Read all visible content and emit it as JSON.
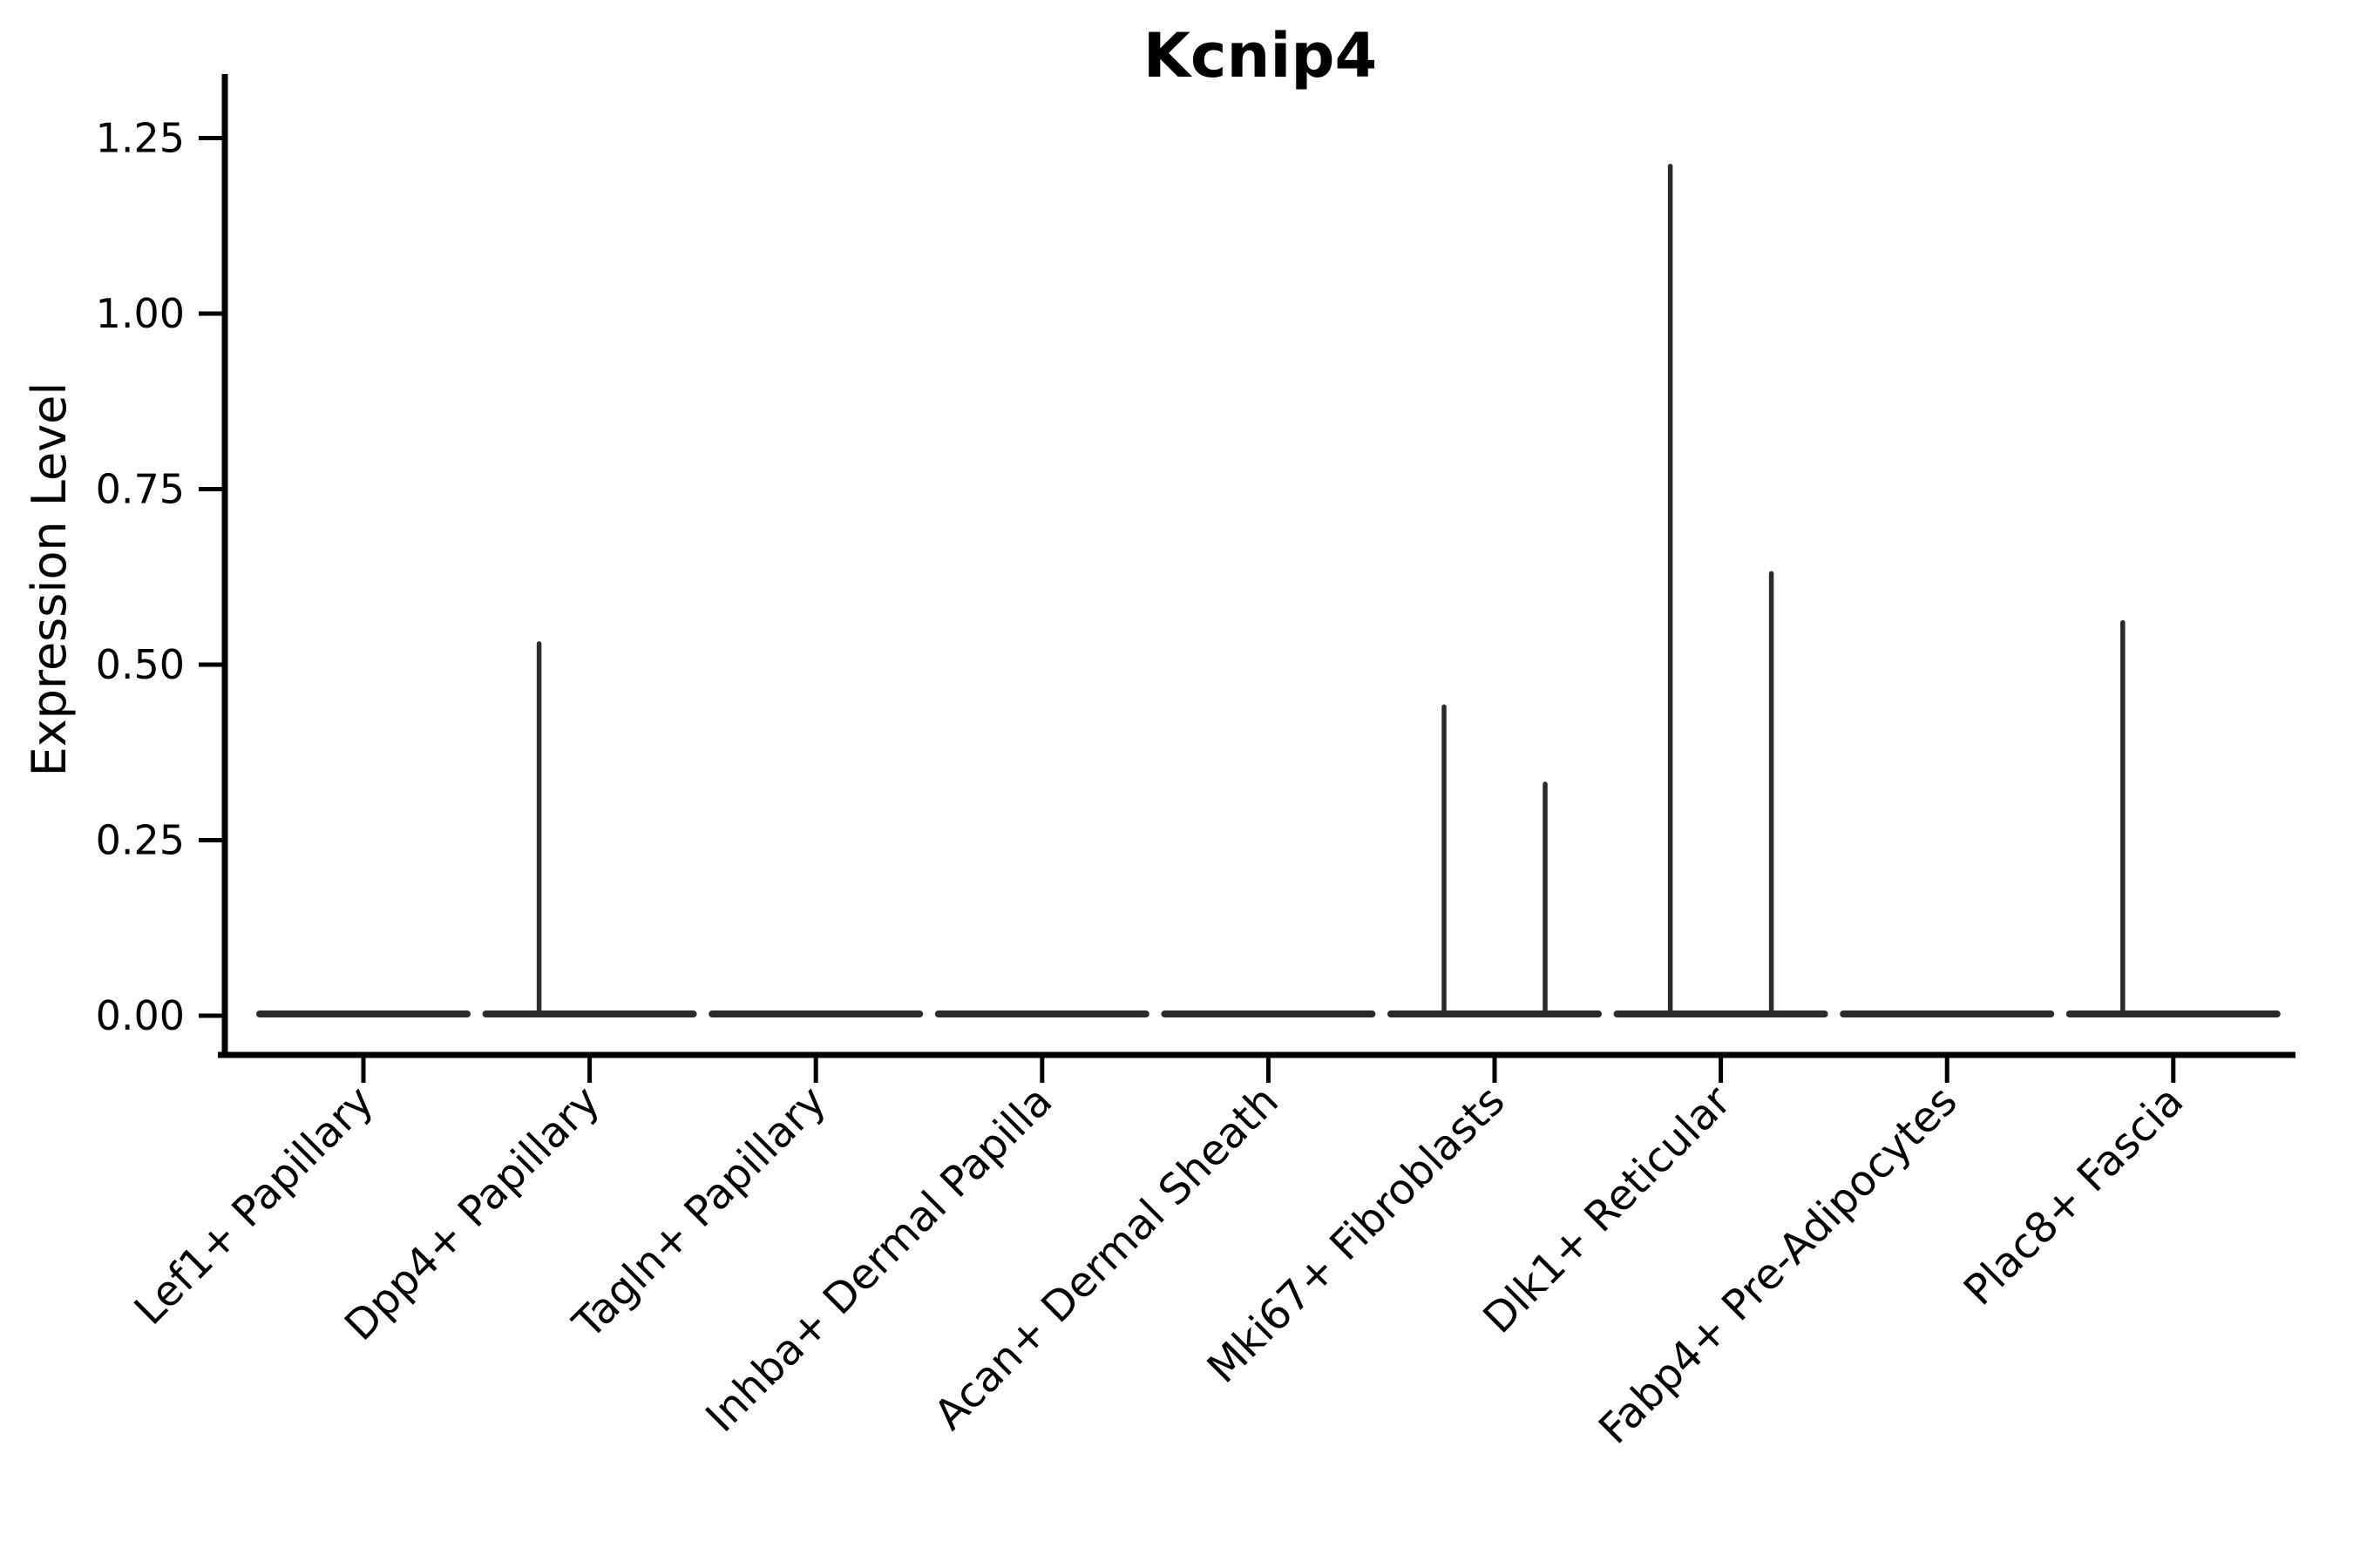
{
  "figure": {
    "title": "Kcnip4",
    "background_color": "#ffffff",
    "violin_line_color": "#2b2b2b",
    "axis_color": "#000000"
  },
  "chart_data": {
    "type": "violin",
    "title": "Kcnip4",
    "xlabel": "",
    "ylabel": "Expression Level",
    "ylim": [
      0,
      1.25
    ],
    "yticks": [
      0.0,
      0.25,
      0.5,
      0.75,
      1.0,
      1.25
    ],
    "ytick_labels": [
      "0.00",
      "0.25",
      "0.50",
      "0.75",
      "1.00",
      "1.25"
    ],
    "grid": false,
    "legend_position": "none",
    "x_tick_rotation": 45,
    "categories": [
      "Lef1+ Papillary",
      "Dpp4+ Papillary",
      "Tagln+ Papillary",
      "Inhba+ Dermal Papilla",
      "Acan+ Dermal Sheath",
      "Mki67+ Fibroblasts",
      "Dlk1+ Reticular",
      "Fabp4+ Pre-Adipocytes",
      "Plac8+ Fascia"
    ],
    "series": [
      {
        "name": "violin-left-half",
        "max_expression": [
          0,
          0.53,
          0,
          0,
          0,
          0.44,
          1.21,
          0,
          0.56
        ]
      },
      {
        "name": "violin-right-half",
        "max_expression": [
          0,
          0,
          0,
          0,
          0,
          0.33,
          0.63,
          0,
          0
        ]
      }
    ],
    "violin_style": "flat baseline at 0 with thin vertical density spike per half-violin; bulk of cells at expression 0"
  }
}
